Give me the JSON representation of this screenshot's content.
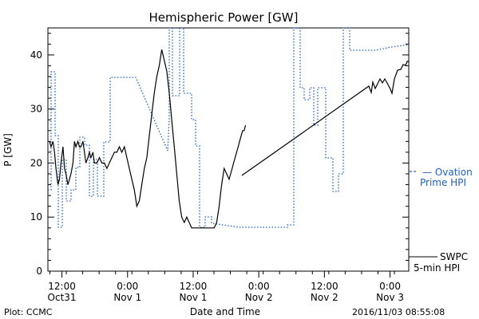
{
  "chart_data": {
    "type": "line",
    "title": "Hemispheric Power [GW]",
    "xlabel": "Date and Time",
    "ylabel": "P [GW]",
    "ylim": [
      0,
      45
    ],
    "xlim_hours": [
      0,
      52
    ],
    "y_ticks": [
      0,
      10,
      20,
      30,
      40
    ],
    "x_ticks": [
      {
        "hour": 2.2,
        "line1": "12:00",
        "line2": "Oct31"
      },
      {
        "hour": 14.2,
        "line1": "0:00",
        "line2": "Nov 1"
      },
      {
        "hour": 26.2,
        "line1": "12:00",
        "line2": "Nov 1"
      },
      {
        "hour": 38.2,
        "line1": "0:00",
        "line2": "Nov 2"
      },
      {
        "hour": 50.2,
        "line1": "12:00",
        "line2": "Nov 2"
      },
      {
        "hour": 62.2,
        "line1": "0:00",
        "line2": "Nov 3"
      }
    ],
    "series": [
      {
        "name": "SWPC 5-min HPI",
        "color": "#000000",
        "style": "solid",
        "x": [
          0.0,
          0.3,
          0.7,
          1.0,
          1.3,
          1.7,
          2.0,
          2.3,
          2.7,
          3.0,
          3.3,
          3.7,
          4.0,
          4.3,
          4.7,
          5.0,
          5.3,
          5.7,
          6.0,
          6.3,
          6.7,
          7.0,
          7.3,
          7.7,
          8.0,
          8.3,
          8.7,
          9.0,
          9.5,
          10.0,
          10.5,
          11.0,
          11.5,
          12.0,
          12.5,
          13.0,
          13.5,
          14.0,
          14.5,
          15.0,
          15.5,
          16.0,
          16.5,
          17.0,
          17.5,
          18.0,
          18.5,
          19.0,
          19.5,
          20.0,
          20.5,
          21.0,
          21.5,
          22.0,
          22.5,
          23.0,
          23.5,
          24.0,
          24.5,
          25.0,
          25.5,
          26.0,
          26.5,
          27.0,
          27.5,
          28.0,
          28.5,
          29.0,
          29.5,
          30.0,
          30.5,
          31.0,
          31.5,
          32.0,
          32.5,
          33.0,
          33.5,
          34.0,
          34.5,
          35.0,
          35.5,
          36.0,
          36.3,
          36.6,
          36.9,
          37.2,
          37.5,
          37.8,
          38.1,
          38.4,
          38.7,
          39.0,
          39.3
        ],
        "y": [
          24,
          23,
          24,
          22,
          19,
          16,
          17,
          20,
          23,
          19,
          18,
          16,
          17,
          18,
          20,
          24,
          23,
          24,
          23,
          23,
          24,
          22,
          20,
          21,
          22,
          21,
          22,
          20,
          20,
          21,
          20,
          20,
          19,
          20,
          21,
          22,
          22,
          23,
          22,
          23,
          21,
          19,
          17,
          15,
          12,
          13,
          16,
          19,
          21,
          25,
          29,
          33,
          36,
          38,
          41,
          39,
          37,
          33,
          28,
          23,
          18,
          13,
          10,
          9,
          10,
          9,
          8,
          8,
          8,
          8,
          8,
          8,
          8,
          8,
          8,
          8,
          9,
          12,
          16,
          19,
          18,
          17,
          18,
          19,
          20,
          21,
          22,
          23,
          24,
          25,
          26,
          26,
          27
        ]
      }
    ]
  },
  "legend": {
    "ovation_line1": "— Ovation",
    "ovation_line2": "Prime HPI",
    "swpc_line1": "SWPC",
    "swpc_line2": "5-min HPI"
  },
  "footer": {
    "plot_credit": "Plot: CCMC",
    "timestamp": "2016/11/03 08:55:08"
  },
  "colors": {
    "ovation": "#1f5fbf",
    "swpc": "#000000"
  }
}
